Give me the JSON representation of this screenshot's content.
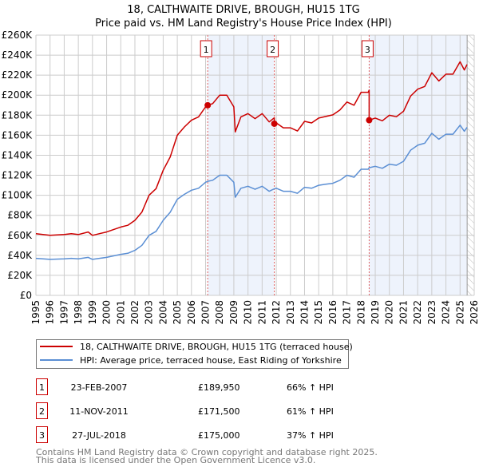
{
  "chart_data": {
    "type": "line",
    "title": "18, CALTHWAITE DRIVE, BROUGH, HU15 1TG",
    "subtitle": "Price paid vs. HM Land Registry's House Price Index (HPI)",
    "xlabel": "",
    "ylabel": "",
    "xlim": [
      1995,
      2026
    ],
    "ylim": [
      0,
      260000
    ],
    "grid": true,
    "x_ticks": [
      "1995",
      "1996",
      "1997",
      "1998",
      "1999",
      "2000",
      "2001",
      "2002",
      "2003",
      "2004",
      "2005",
      "2006",
      "2007",
      "2008",
      "2009",
      "2010",
      "2011",
      "2012",
      "2013",
      "2014",
      "2015",
      "2016",
      "2017",
      "2018",
      "2019",
      "2020",
      "2021",
      "2022",
      "2023",
      "2024",
      "2025",
      "2026"
    ],
    "y_ticks": [
      {
        "value": 0,
        "label": "£0"
      },
      {
        "value": 20000,
        "label": "£20K"
      },
      {
        "value": 40000,
        "label": "£40K"
      },
      {
        "value": 60000,
        "label": "£60K"
      },
      {
        "value": 80000,
        "label": "£80K"
      },
      {
        "value": 100000,
        "label": "£100K"
      },
      {
        "value": 120000,
        "label": "£120K"
      },
      {
        "value": 140000,
        "label": "£140K"
      },
      {
        "value": 160000,
        "label": "£160K"
      },
      {
        "value": 180000,
        "label": "£180K"
      },
      {
        "value": 200000,
        "label": "£200K"
      },
      {
        "value": 220000,
        "label": "£220K"
      },
      {
        "value": 240000,
        "label": "£240K"
      },
      {
        "value": 260000,
        "label": "£260K"
      }
    ],
    "shaded_ranges": [
      [
        2007.15,
        2011.86
      ],
      [
        2018.57,
        2025.5
      ]
    ],
    "hatched_range": [
      2025.5,
      2026
    ],
    "series": [
      {
        "name": "18, CALTHWAITE DRIVE, BROUGH, HU15 1TG (terraced house)",
        "color": "#cc0000",
        "x": [
          1995,
          1996,
          1997,
          1997.5,
          1998,
          1998.7,
          1999,
          2000,
          2001,
          2001.5,
          2002,
          2002.5,
          2003,
          2003.5,
          2004,
          2004.5,
          2005,
          2005.5,
          2006,
          2006.5,
          2007,
          2007.15,
          2007.5,
          2008,
          2008.5,
          2009,
          2009.1,
          2009.5,
          2010,
          2010.5,
          2011,
          2011.5,
          2011.86,
          2011.86,
          2012,
          2012.5,
          2013,
          2013.5,
          2014,
          2014.5,
          2015,
          2015.5,
          2016,
          2016.5,
          2017,
          2017.5,
          2018,
          2018.5,
          2018.57,
          2018.57,
          2019,
          2019.5,
          2020,
          2020.5,
          2021,
          2021.5,
          2022,
          2022.5,
          2023,
          2023.5,
          2024,
          2024.5,
          2025,
          2025.3,
          2025.5
        ],
        "y": [
          61600,
          60000,
          60800,
          61600,
          60800,
          63300,
          60000,
          63300,
          68300,
          70000,
          75000,
          83300,
          100000,
          106600,
          125000,
          138300,
          160000,
          168300,
          175000,
          178300,
          188300,
          189950,
          191600,
          200000,
          200000,
          188300,
          163300,
          178300,
          181600,
          176600,
          181600,
          173300,
          177400,
          171500,
          172300,
          167400,
          167400,
          164200,
          173900,
          172300,
          177100,
          178700,
          180300,
          185200,
          193200,
          190000,
          202900,
          202900,
          205000,
          175000,
          177100,
          174400,
          179900,
          178500,
          184000,
          199100,
          206000,
          208700,
          222400,
          214200,
          221000,
          221000,
          233400,
          225200,
          230700
        ]
      },
      {
        "name": "HPI: Average price, terraced house, East Riding of Yorkshire",
        "color": "#5b8fd4",
        "x": [
          1995,
          1996,
          1997,
          1997.5,
          1998,
          1998.7,
          1999,
          2000,
          2001,
          2001.5,
          2002,
          2002.5,
          2003,
          2003.5,
          2004,
          2004.5,
          2005,
          2005.5,
          2006,
          2006.5,
          2007,
          2007.15,
          2007.5,
          2008,
          2008.5,
          2009,
          2009.1,
          2009.5,
          2010,
          2010.5,
          2011,
          2011.5,
          2011.86,
          2012,
          2012.5,
          2013,
          2013.5,
          2014,
          2014.5,
          2015,
          2015.5,
          2016,
          2016.5,
          2017,
          2017.5,
          2018,
          2018.5,
          2018.57,
          2019,
          2019.5,
          2020,
          2020.5,
          2021,
          2021.5,
          2022,
          2022.5,
          2023,
          2023.5,
          2024,
          2024.5,
          2025,
          2025.3,
          2025.5
        ],
        "y": [
          37000,
          36000,
          36500,
          37000,
          36500,
          38000,
          36000,
          38000,
          41000,
          42000,
          45000,
          50000,
          60000,
          64000,
          75000,
          83000,
          96000,
          101000,
          105000,
          107000,
          113000,
          114000,
          115000,
          120000,
          120000,
          113000,
          98000,
          107000,
          109000,
          106000,
          109000,
          104000,
          106500,
          107000,
          104000,
          104000,
          102000,
          108000,
          107000,
          110000,
          111000,
          112000,
          115000,
          120000,
          118000,
          126000,
          126000,
          127500,
          129000,
          127000,
          131000,
          130000,
          134000,
          145000,
          150000,
          152000,
          162000,
          156000,
          161000,
          161000,
          170000,
          164000,
          168000
        ]
      }
    ],
    "sales": [
      {
        "label": "1",
        "date": "23-FEB-2007",
        "x": 2007.15,
        "price": 189950,
        "price_text": "£189,950",
        "hpi_diff": "66% ↑ HPI"
      },
      {
        "label": "2",
        "date": "11-NOV-2011",
        "x": 2011.86,
        "price": 171500,
        "price_text": "£171,500",
        "hpi_diff": "61% ↑ HPI"
      },
      {
        "label": "3",
        "date": "27-JUL-2018",
        "x": 2018.57,
        "price": 175000,
        "price_text": "£175,000",
        "hpi_diff": "37% ↑ HPI"
      }
    ],
    "legend_placement": "below"
  },
  "footer": {
    "line1": "Contains HM Land Registry data © Crown copyright and database right 2025.",
    "line2": "This data is licensed under the Open Government Licence v3.0."
  }
}
